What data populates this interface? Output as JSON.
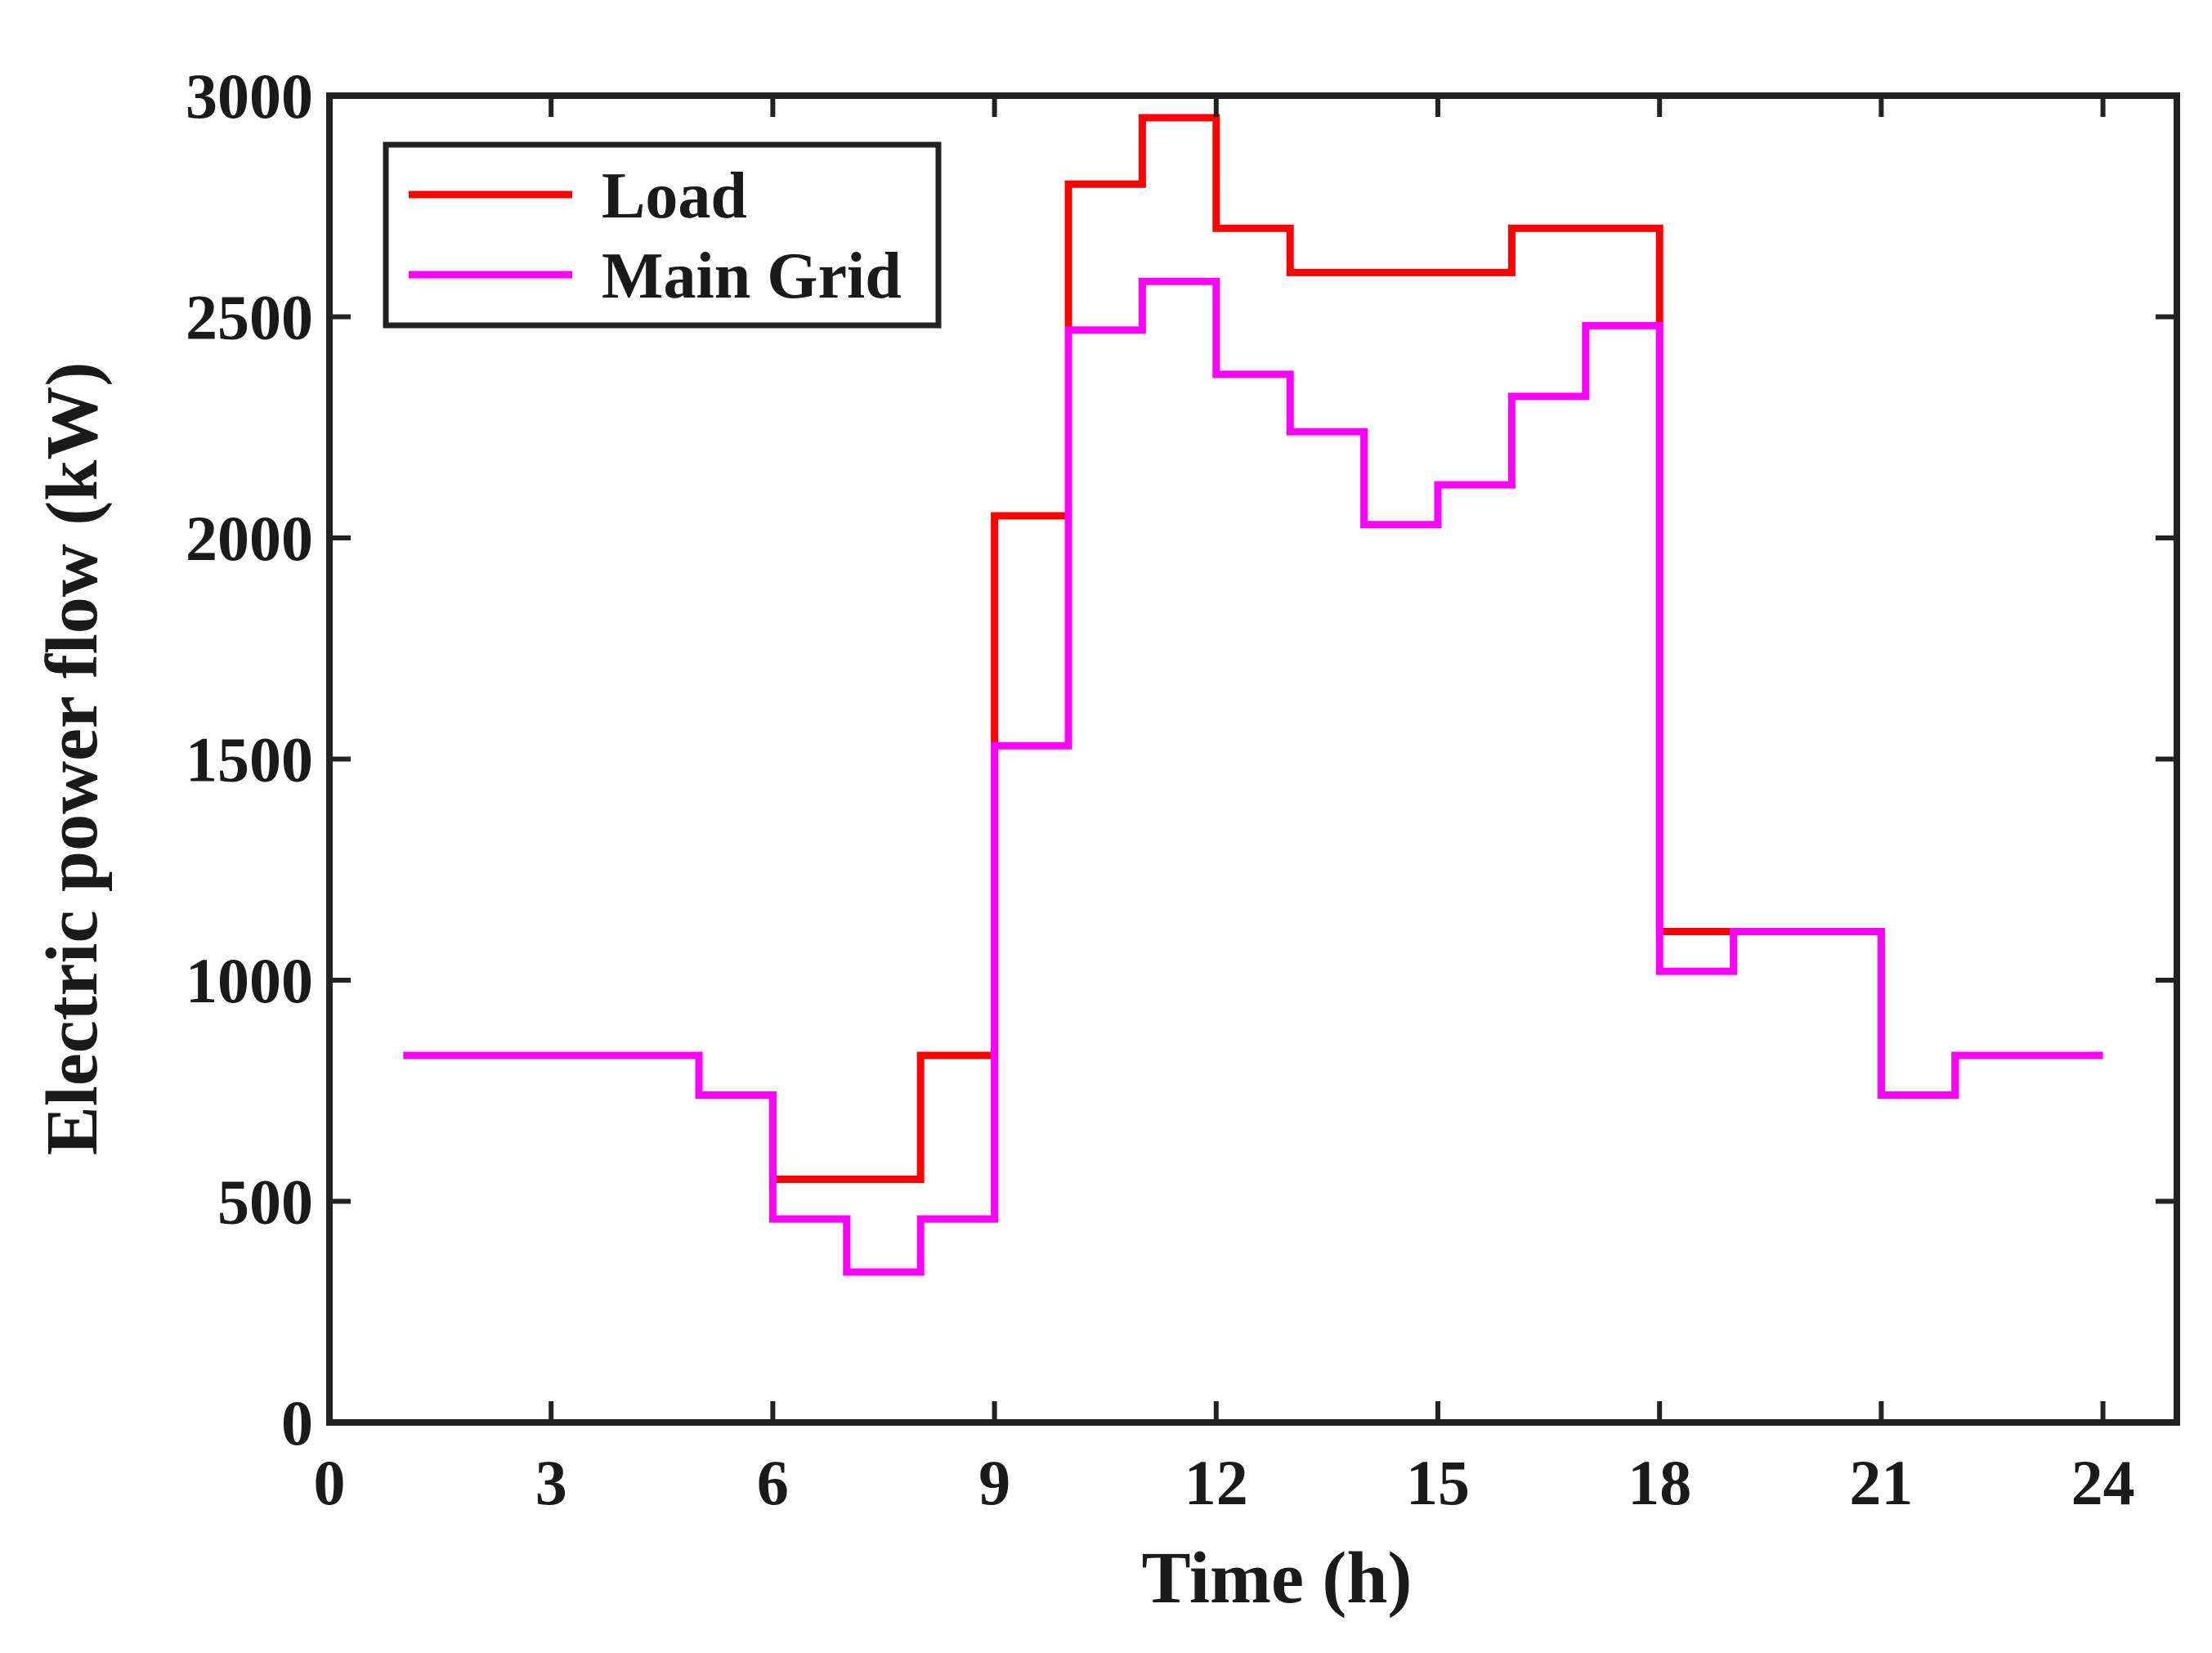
{
  "chart_data": {
    "type": "line",
    "step": true,
    "title": "",
    "xlabel": "Time (h)",
    "ylabel": "Electric power flow (kW)",
    "xlim": [
      0,
      25
    ],
    "ylim": [
      0,
      3000
    ],
    "xticks": [
      0,
      3,
      6,
      9,
      12,
      15,
      18,
      21,
      24
    ],
    "yticks": [
      0,
      500,
      1000,
      1500,
      2000,
      2500,
      3000
    ],
    "legend": {
      "position": "top-left"
    },
    "series": [
      {
        "name": "Load",
        "color": "#ff0000",
        "x": [
          1,
          2,
          3,
          4,
          5,
          6,
          7,
          8,
          9,
          10,
          11,
          12,
          13,
          14,
          15,
          16,
          17,
          18,
          19,
          20,
          21,
          22,
          23,
          24
        ],
        "values": [
          830,
          830,
          830,
          830,
          740,
          550,
          550,
          830,
          2050,
          2800,
          2950,
          2700,
          2600,
          2600,
          2600,
          2700,
          2700,
          1110,
          1110,
          1110,
          740,
          830,
          830,
          830
        ]
      },
      {
        "name": "Main Grid",
        "color": "#ff00ff",
        "x": [
          1,
          2,
          3,
          4,
          5,
          6,
          7,
          8,
          9,
          10,
          11,
          12,
          13,
          14,
          15,
          16,
          17,
          18,
          19,
          20,
          21,
          22,
          23,
          24
        ],
        "values": [
          830,
          830,
          830,
          830,
          740,
          460,
          340,
          460,
          1530,
          2470,
          2580,
          2370,
          2240,
          2030,
          2120,
          2320,
          2480,
          1020,
          1110,
          1110,
          740,
          830,
          830,
          830
        ]
      }
    ]
  }
}
